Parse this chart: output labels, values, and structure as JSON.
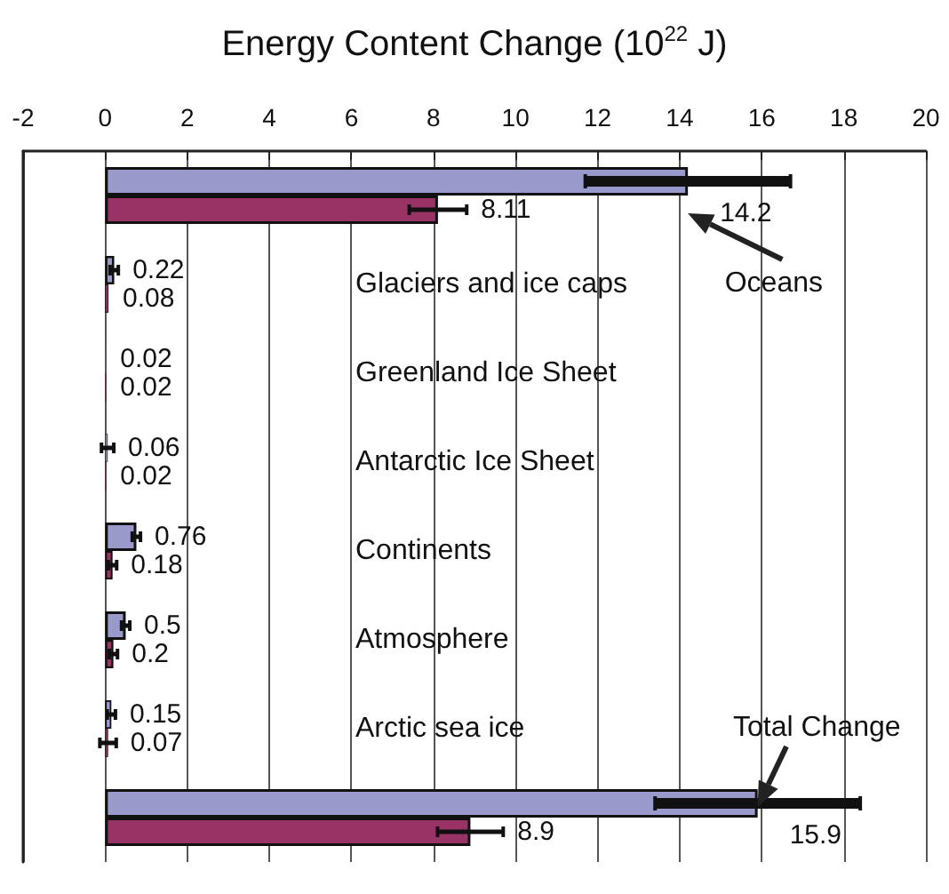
{
  "chart_data": {
    "type": "bar",
    "orientation": "horizontal",
    "title": "Energy Content Change (10$^{22}$ J)",
    "categories": [
      null,
      "Glaciers and ice caps",
      "Greenland Ice Sheet",
      "Antarctic Ice Sheet",
      "Continents",
      "Atmosphere",
      "Arctic sea ice",
      null
    ],
    "annotations": [
      "Oceans",
      "Total Change"
    ],
    "series": [
      {
        "color": "#9999cc",
        "values": [
          14.2,
          0.22,
          0.02,
          0.06,
          0.76,
          0.5,
          0.15,
          15.9
        ],
        "errors": [
          2.5,
          0.1,
          null,
          0.15,
          0.1,
          0.1,
          0.1,
          2.5
        ]
      },
      {
        "color": "#993366",
        "values": [
          8.11,
          0.08,
          0.02,
          0.02,
          0.18,
          0.2,
          0.07,
          8.9
        ],
        "errors": [
          0.7,
          null,
          null,
          null,
          0.1,
          0.1,
          0.2,
          0.8
        ]
      }
    ],
    "xlim": [
      -2,
      20
    ],
    "xticks": [
      -2,
      0,
      2,
      4,
      6,
      8,
      10,
      12,
      14,
      16,
      18,
      20
    ],
    "grid": "x",
    "data_labels": true
  }
}
